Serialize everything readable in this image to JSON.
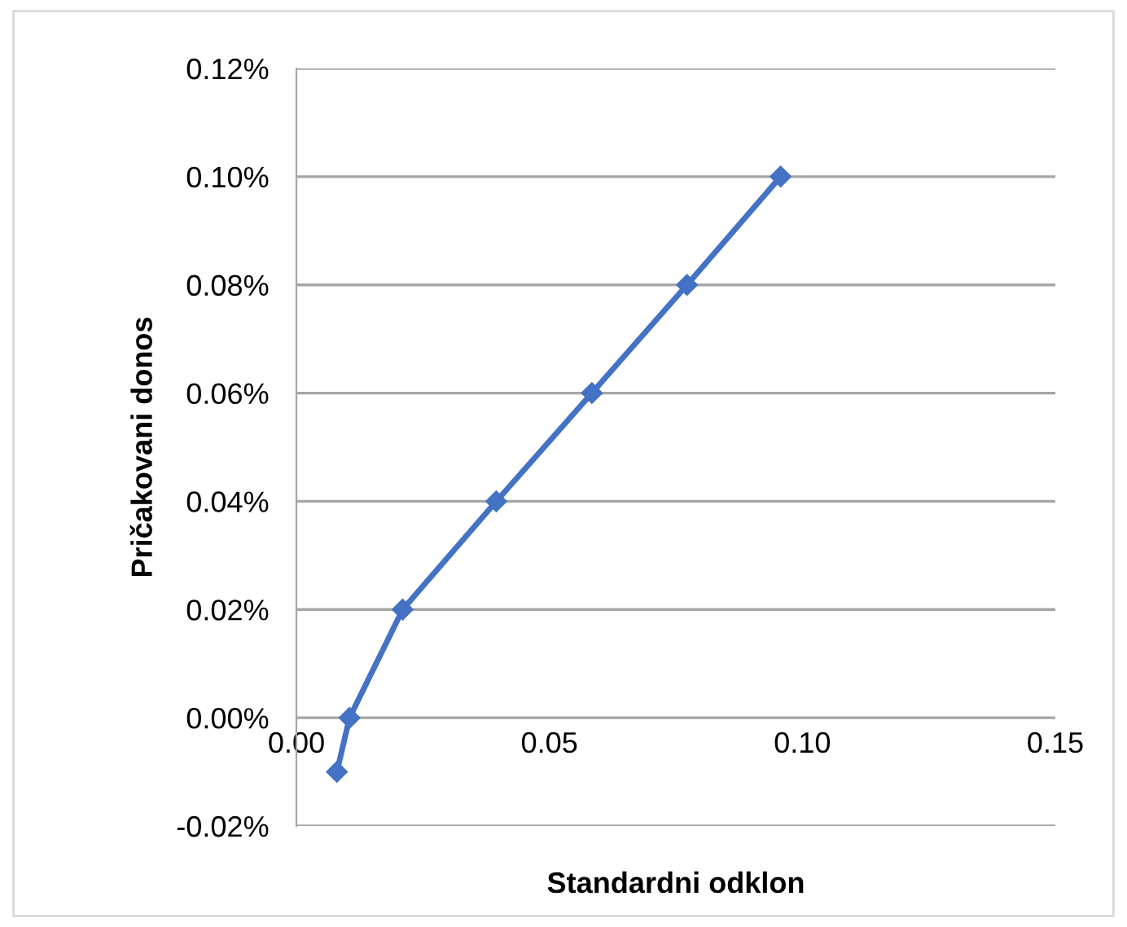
{
  "chart_data": {
    "type": "line",
    "xlabel": "Standardni odklon",
    "ylabel": "Pričakovani donos",
    "x": [
      0.008,
      0.0105,
      0.021,
      0.0395,
      0.0584,
      0.0772,
      0.0957
    ],
    "series": [
      {
        "color": "#4472c4",
        "values": [
          -0.01,
          0.0,
          0.02,
          0.04,
          0.06,
          0.08,
          0.1
        ]
      }
    ],
    "marker": "diamond",
    "line_style": "solid",
    "xlim": [
      0,
      0.15
    ],
    "xticks": [
      {
        "value": 0,
        "label": "0.00"
      },
      {
        "value": 0.05,
        "label": "0.05"
      },
      {
        "value": 0.1,
        "label": "0.10"
      },
      {
        "value": 0.15,
        "label": "0.15"
      }
    ],
    "ylim": [
      -0.02,
      0.12
    ],
    "yticks": [
      {
        "value": -0.02,
        "label": "-0.02%"
      },
      {
        "value": 0,
        "label": "0.00%"
      },
      {
        "value": 0.02,
        "label": "0.02%"
      },
      {
        "value": 0.04,
        "label": "0.04%"
      },
      {
        "value": 0.06,
        "label": "0.06%"
      },
      {
        "value": 0.08,
        "label": "0.08%"
      },
      {
        "value": 0.1,
        "label": "0.10%"
      },
      {
        "value": 0.12,
        "label": "0.12%"
      }
    ],
    "grid": "y",
    "legend": false
  }
}
